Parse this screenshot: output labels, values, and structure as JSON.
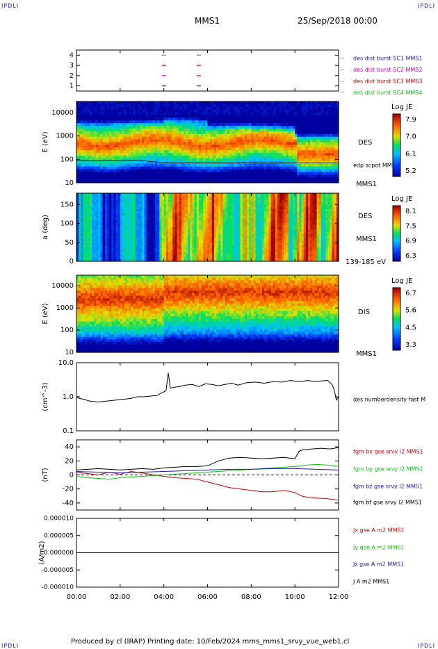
{
  "header": {
    "corner_tl": "IPDLI",
    "corner_tr": "IPDLI",
    "mission": "MMS1",
    "date_time": "25/Sep/2018 00:00"
  },
  "footer": {
    "text": "Produced by cl (IRAP)   Printing date: 10/Feb/2024   mms_mms1_srvy_vue_web1.cl",
    "corner_bl": "IPDLI",
    "corner_br": "IPDLI"
  },
  "chart_data": [
    {
      "type": "scatter",
      "panel": "dist-burst",
      "ylim": [
        0.5,
        4.5
      ],
      "yticks": [
        "1",
        "2",
        "3",
        "4"
      ],
      "legend": [
        {
          "name": "des dist burst SC1 MMS1",
          "color": "#1a1aa8"
        },
        {
          "name": "des dist burst SC2 MMS2",
          "color": "#c000c0"
        },
        {
          "name": "des dist burst SC3 MMS3",
          "color": "#d00000"
        },
        {
          "name": "des dist burst SC4 MMS4",
          "color": "#10c010"
        }
      ],
      "marks": [
        {
          "x": 4.0,
          "y": 4,
          "color": "#10c010"
        },
        {
          "x": 5.6,
          "y": 4,
          "color": "#10c010"
        },
        {
          "x": 4.0,
          "y": 3,
          "color": "#d00000"
        },
        {
          "x": 5.6,
          "y": 3,
          "color": "#d00000"
        },
        {
          "x": 4.0,
          "y": 2,
          "color": "#c000c0"
        },
        {
          "x": 5.6,
          "y": 2,
          "color": "#c000c0"
        },
        {
          "x": 4.0,
          "y": 1,
          "color": "#1a1aa8"
        },
        {
          "x": 5.6,
          "y": 1,
          "color": "#1a1aa8"
        }
      ]
    },
    {
      "type": "heatmap",
      "panel": "des-energy",
      "ylabel": "E (eV)",
      "yscale": "log",
      "ylim": [
        10,
        30000
      ],
      "yticks": [
        "10",
        "100",
        "1000",
        "10000"
      ],
      "right_labels": [
        "DES",
        "edp scpot MMS1",
        "MMS1"
      ],
      "colorbar": {
        "title": "Log JE",
        "ticks": [
          "7.9",
          "7.0",
          "6.1",
          "5.2"
        ]
      }
    },
    {
      "type": "heatmap",
      "panel": "des-pitch",
      "ylabel": "a (deg)",
      "ylim": [
        0,
        180
      ],
      "yticks": [
        "0",
        "50",
        "100",
        "150"
      ],
      "right_labels": [
        "DES",
        "MMS1",
        "139-185 eV"
      ],
      "colorbar": {
        "title": "Log JE",
        "ticks": [
          "8.1",
          "7.5",
          "6.9",
          "6.3"
        ]
      }
    },
    {
      "type": "heatmap",
      "panel": "dis-energy",
      "ylabel": "E (eV)",
      "yscale": "log",
      "ylim": [
        10,
        30000
      ],
      "yticks": [
        "10",
        "100",
        "1000",
        "10000"
      ],
      "right_labels": [
        "DIS",
        "MMS1"
      ],
      "colorbar": {
        "title": "Log JE",
        "ticks": [
          "6.7",
          "5.6",
          "4.5",
          "3.3"
        ]
      }
    },
    {
      "type": "line",
      "panel": "density",
      "ylabel": "(cm^-3)",
      "yscale": "log",
      "ylim": [
        0.1,
        10
      ],
      "yticks": [
        "0.1",
        "1.0",
        "10.0"
      ],
      "series": [
        {
          "name": "des numberdensity fast M",
          "color": "#000000",
          "x": [
            0,
            0.3,
            0.6,
            1,
            1.4,
            1.8,
            2.2,
            2.5,
            2.8,
            3.1,
            3.4,
            3.7,
            3.9,
            4.1,
            4.2,
            4.3,
            4.5,
            4.7,
            5,
            5.3,
            5.6,
            5.9,
            6.2,
            6.5,
            6.8,
            7.1,
            7.4,
            7.8,
            8.2,
            8.6,
            9,
            9.4,
            9.8,
            10.2,
            10.6,
            10.9,
            11.2,
            11.5,
            11.7,
            11.8,
            11.9,
            12
          ],
          "values": [
            0.95,
            0.85,
            0.75,
            0.7,
            0.75,
            0.8,
            0.85,
            0.9,
            1.0,
            1.0,
            1.05,
            1.1,
            1.3,
            1.5,
            5.0,
            1.8,
            1.9,
            2.0,
            2.2,
            2.3,
            2.0,
            2.4,
            2.3,
            2.1,
            2.3,
            2.5,
            2.2,
            2.6,
            2.7,
            2.5,
            2.8,
            2.7,
            3.0,
            2.8,
            3.0,
            2.8,
            2.9,
            3.0,
            2.3,
            1.6,
            0.8,
            1.0
          ]
        }
      ]
    },
    {
      "type": "line",
      "panel": "fgm",
      "ylabel": "(nT)",
      "ylim": [
        -50,
        50
      ],
      "yticks": [
        "-40",
        "-20",
        "0",
        "20",
        "40"
      ],
      "series": [
        {
          "name": "fgm bx gse srvy l2 MMS1",
          "color": "#d00000",
          "x": [
            0,
            0.5,
            1,
            1.5,
            2,
            2.5,
            3,
            3.5,
            4,
            4.5,
            5,
            5.5,
            6,
            6.5,
            7,
            7.5,
            8,
            8.5,
            9,
            9.5,
            10,
            10.3,
            10.6,
            11,
            11.5,
            12
          ],
          "values": [
            4,
            2,
            0,
            4,
            1,
            5,
            3,
            0,
            -2,
            -4,
            -5,
            -6,
            -10,
            -14,
            -18,
            -20,
            -22,
            -24,
            -24,
            -22,
            -25,
            -30,
            -32,
            -33,
            -34,
            -36
          ]
        },
        {
          "name": "fgm by gse srvy l2 MMS1",
          "color": "#10c010",
          "x": [
            0,
            0.5,
            1,
            1.5,
            2,
            2.5,
            3,
            3.5,
            4,
            4.5,
            5,
            5.5,
            6,
            6.5,
            7,
            7.5,
            8,
            8.5,
            9,
            9.5,
            10,
            10.5,
            11,
            11.5,
            12
          ],
          "values": [
            -2,
            -4,
            -5,
            -6,
            -4,
            -3,
            -2,
            -1,
            0,
            1,
            2,
            3,
            4,
            5,
            6,
            7,
            8,
            9,
            10,
            11,
            12,
            14,
            15,
            14,
            12
          ]
        },
        {
          "name": "fgm bz gse srvy l2 MMS1",
          "color": "#1a1aa8",
          "x": [
            0,
            1,
            2,
            3,
            4,
            5,
            6,
            7,
            8,
            9,
            10,
            11,
            12
          ],
          "values": [
            5,
            4,
            3,
            4,
            5,
            6,
            7,
            8,
            8,
            9,
            9,
            8,
            7
          ]
        },
        {
          "name": "fgm bt gse srvy l2 MMS1",
          "color": "#000000",
          "x": [
            0,
            0.5,
            1,
            1.5,
            2,
            2.5,
            3,
            3.5,
            4,
            4.5,
            5,
            5.5,
            6,
            6.5,
            7,
            7.5,
            8,
            8.5,
            9,
            9.5,
            10,
            10.2,
            10.4,
            10.8,
            11.2,
            11.6,
            12
          ],
          "values": [
            7,
            8,
            9,
            8,
            7,
            8,
            9,
            8,
            10,
            11,
            12,
            12,
            13,
            20,
            24,
            25,
            24,
            23,
            24,
            25,
            23,
            34,
            36,
            37,
            38,
            37,
            39
          ]
        }
      ]
    },
    {
      "type": "line",
      "panel": "current",
      "ylabel": "(A/m2)",
      "ylim": [
        -1e-05,
        1e-05
      ],
      "yticks": [
        "-0.000010",
        "-0.000005",
        "0.000000",
        "0.000005",
        "0.000010"
      ],
      "series": [
        {
          "name": "Jx gse A m2 MMS1",
          "color": "#d00000"
        },
        {
          "name": "Jy gse A m2 MMS1",
          "color": "#10c010"
        },
        {
          "name": "Jz gse A m2 MMS1",
          "color": "#1a1aa8"
        },
        {
          "name": "J A m2 MMS1",
          "color": "#000000",
          "x": [
            0,
            12
          ],
          "values": [
            0,
            0
          ]
        }
      ]
    }
  ],
  "time_axis": {
    "xlim": [
      0,
      12
    ],
    "ticks": [
      {
        "x": 0,
        "label": "00:00"
      },
      {
        "x": 2,
        "label": "02:00"
      },
      {
        "x": 4,
        "label": "04:00"
      },
      {
        "x": 6,
        "label": "06:00"
      },
      {
        "x": 8,
        "label": "08:00"
      },
      {
        "x": 10,
        "label": "10:00"
      },
      {
        "x": 12,
        "label": "12:00"
      }
    ]
  }
}
